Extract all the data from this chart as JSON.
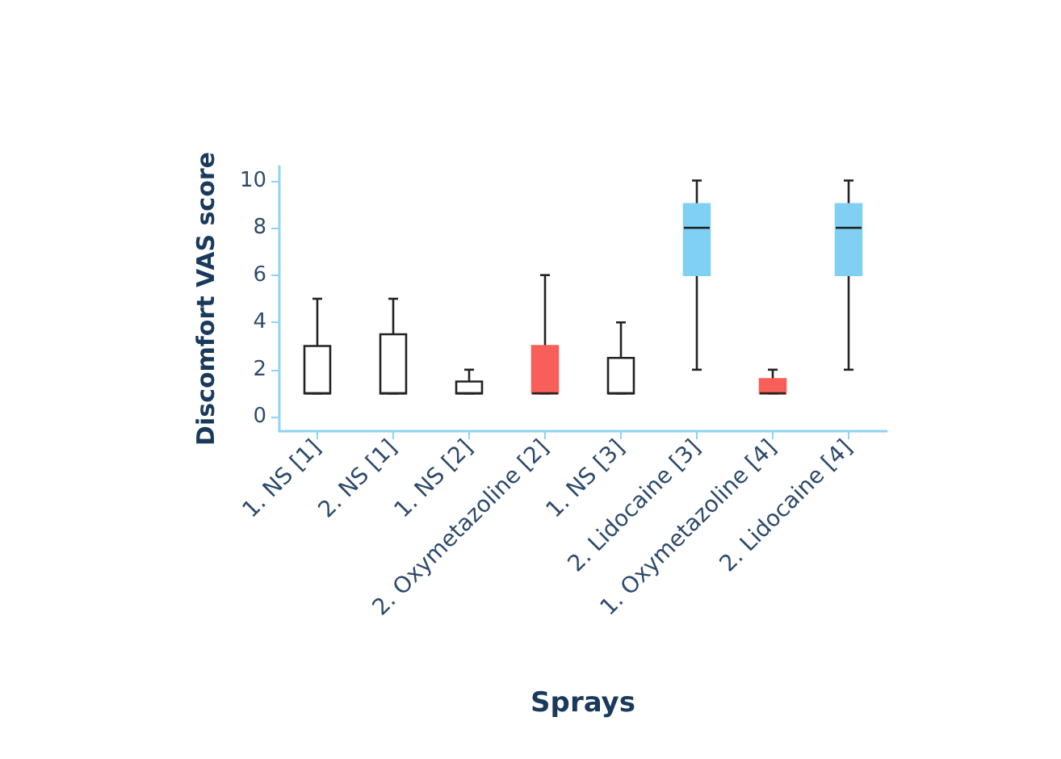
{
  "chart_data": {
    "type": "box",
    "xlabel": "Sprays",
    "ylabel": "Discomfort VAS score",
    "categories": [
      "1. NS [1]",
      "2. NS [1]",
      "1. NS [2]",
      "2. Oxymetazoline [2]",
      "1. NS [3]",
      "2. Lidocaine [3]",
      "1. Oxymetazoline [4]",
      "2. Lidocaine [4]"
    ],
    "boxes": [
      {
        "low": 1,
        "q1": 1,
        "median": 1,
        "q3": 3,
        "high": 5
      },
      {
        "low": 1,
        "q1": 1,
        "median": 1,
        "q3": 3.5,
        "high": 5
      },
      {
        "low": 1,
        "q1": 1,
        "median": 1,
        "q3": 1.5,
        "high": 2
      },
      {
        "low": 1,
        "q1": 1,
        "median": 1,
        "q3": 3,
        "high": 6
      },
      {
        "low": 1,
        "q1": 1,
        "median": 1,
        "q3": 2.5,
        "high": 4
      },
      {
        "low": 2,
        "q1": 6,
        "median": 8,
        "q3": 9,
        "high": 10
      },
      {
        "low": 1,
        "q1": 1,
        "median": 1,
        "q3": 1.6,
        "high": 2
      },
      {
        "low": 2,
        "q1": 6,
        "median": 8,
        "q3": 9,
        "high": 10
      }
    ],
    "colors": [
      "#ffffff",
      "#ffffff",
      "#ffffff",
      "#f85f58",
      "#ffffff",
      "#80d0f4",
      "#f85f58",
      "#80d0f4"
    ],
    "ylim": [
      -0.6,
      10.6
    ],
    "yticks": [
      0,
      2,
      4,
      6,
      8,
      10
    ],
    "grid": false
  }
}
